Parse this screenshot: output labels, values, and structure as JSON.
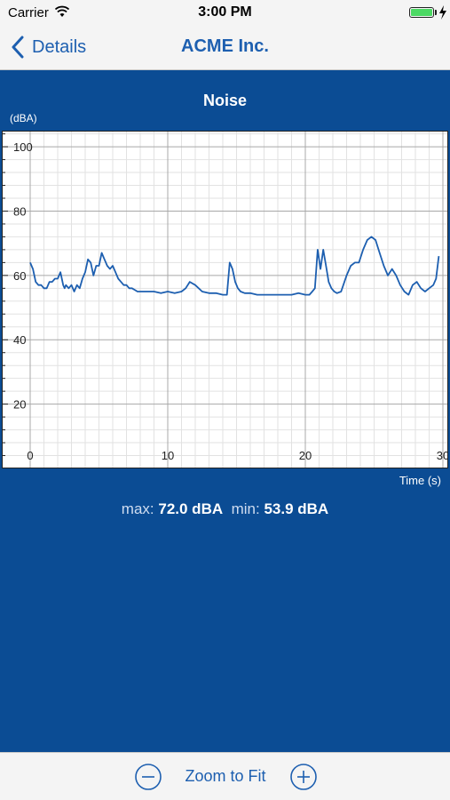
{
  "status_bar": {
    "carrier": "Carrier",
    "time": "3:00 PM"
  },
  "nav": {
    "back_label": "Details",
    "title": "ACME Inc."
  },
  "chart_data": {
    "type": "line",
    "title": "Noise",
    "ylabel": "(dBA)",
    "xlabel": "Time (s)",
    "xlim": [
      0,
      30
    ],
    "ylim": [
      0,
      105
    ],
    "x_ticks": [
      0,
      10,
      20,
      30
    ],
    "y_ticks": [
      20,
      40,
      60,
      80,
      100
    ],
    "grid": true,
    "line_color": "#1d5fb0",
    "series": [
      {
        "x": [
          0,
          0.2,
          0.4,
          0.6,
          0.8,
          1.0,
          1.2,
          1.4,
          1.6,
          1.8,
          2.0,
          2.2,
          2.4,
          2.5,
          2.6,
          2.8,
          3.0,
          3.2,
          3.4,
          3.6,
          3.8,
          4.0,
          4.2,
          4.4,
          4.6,
          4.8,
          5.0,
          5.2,
          5.4,
          5.6,
          5.8,
          6.0,
          6.2,
          6.4,
          6.6,
          6.8,
          7.0,
          7.2,
          7.4,
          7.6,
          7.8,
          8.0,
          8.5,
          9.0,
          9.5,
          10.0,
          10.5,
          11.0,
          11.3,
          11.6,
          12.0,
          12.5,
          13.0,
          13.5,
          14.0,
          14.3,
          14.5,
          14.7,
          14.9,
          15.1,
          15.3,
          15.6,
          16.0,
          16.5,
          17.0,
          17.5,
          18.0,
          18.5,
          19.0,
          19.5,
          20.0,
          20.3,
          20.5,
          20.7,
          20.9,
          21.1,
          21.3,
          21.5,
          21.7,
          21.9,
          22.1,
          22.3,
          22.6,
          23.0,
          23.3,
          23.6,
          23.9,
          24.2,
          24.5,
          24.8,
          25.1,
          25.4,
          25.7,
          26.0,
          26.3,
          26.6,
          26.9,
          27.2,
          27.5,
          27.8,
          28.1,
          28.4,
          28.7,
          29.0,
          29.3,
          29.5,
          29.7
        ],
        "y": [
          64,
          62,
          58,
          57,
          57,
          56,
          56,
          58,
          58,
          59,
          59,
          61,
          57,
          56,
          57,
          56,
          57,
          55,
          57,
          56,
          59,
          61,
          65,
          64,
          60,
          63,
          63,
          67,
          65,
          63,
          62,
          63,
          61,
          59,
          58,
          57,
          57,
          56,
          56,
          55.5,
          55,
          55,
          55,
          55,
          54.5,
          55,
          54.5,
          55,
          56,
          58,
          57,
          55,
          54.5,
          54.5,
          54,
          54,
          64,
          62,
          58,
          56,
          55,
          54.5,
          54.5,
          54,
          54,
          54,
          54,
          54,
          54,
          54.5,
          54,
          54,
          55,
          56,
          68,
          62,
          68,
          63,
          58,
          56,
          55,
          54.5,
          55,
          60,
          63,
          64,
          64,
          68,
          71,
          72,
          71,
          67,
          63,
          60,
          62,
          60,
          57,
          55,
          54,
          57,
          58,
          56,
          55,
          56,
          57,
          59,
          66
        ]
      }
    ]
  },
  "stats": {
    "max_label": "max:",
    "max_value": "72.0 dBA",
    "min_label": "min:",
    "min_value": "53.9 dBA"
  },
  "toolbar": {
    "zoom_fit_label": "Zoom to Fit"
  },
  "icons": {
    "back": "chevron-left-icon",
    "zoom_out": "minus-circle-icon",
    "zoom_in": "plus-circle-icon"
  }
}
